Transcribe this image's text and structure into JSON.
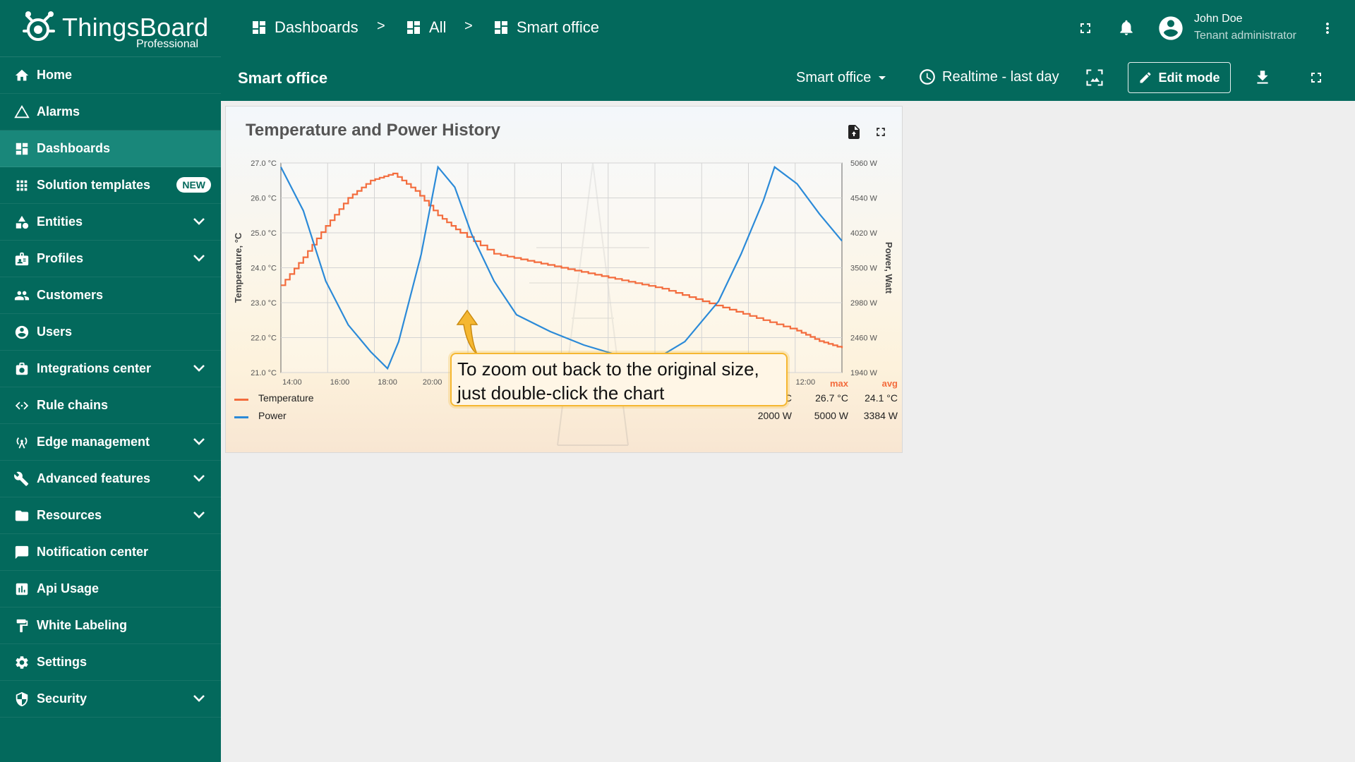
{
  "logo": {
    "name": "ThingsBoard",
    "subtitle": "Professional"
  },
  "sidebar": {
    "items": [
      {
        "label": "Home",
        "icon": "home-icon",
        "expandable": false
      },
      {
        "label": "Alarms",
        "icon": "alarm-triangle-icon",
        "expandable": false
      },
      {
        "label": "Dashboards",
        "icon": "dashboard-icon",
        "expandable": false,
        "active": true
      },
      {
        "label": "Solution templates",
        "icon": "apps-grid-icon",
        "expandable": false,
        "badge": "NEW"
      },
      {
        "label": "Entities",
        "icon": "shapes-icon",
        "expandable": true
      },
      {
        "label": "Profiles",
        "icon": "badge-icon",
        "expandable": true
      },
      {
        "label": "Customers",
        "icon": "people-icon",
        "expandable": false
      },
      {
        "label": "Users",
        "icon": "account-circle-icon",
        "expandable": false
      },
      {
        "label": "Integrations center",
        "icon": "integration-icon",
        "expandable": true
      },
      {
        "label": "Rule chains",
        "icon": "code-arrows-icon",
        "expandable": false
      },
      {
        "label": "Edge management",
        "icon": "wifi-tower-icon",
        "expandable": true
      },
      {
        "label": "Advanced features",
        "icon": "tools-icon",
        "expandable": true
      },
      {
        "label": "Resources",
        "icon": "folder-icon",
        "expandable": true
      },
      {
        "label": "Notification center",
        "icon": "notification-flag-icon",
        "expandable": false
      },
      {
        "label": "Api Usage",
        "icon": "bar-chart-icon",
        "expandable": false
      },
      {
        "label": "White Labeling",
        "icon": "paint-roller-icon",
        "expandable": false
      },
      {
        "label": "Settings",
        "icon": "gear-icon",
        "expandable": false
      },
      {
        "label": "Security",
        "icon": "shield-icon",
        "expandable": true
      }
    ]
  },
  "breadcrumb": {
    "items": [
      "Dashboards",
      "All",
      "Smart office"
    ],
    "separator": ">"
  },
  "user": {
    "name": "John Doe",
    "role": "Tenant administrator"
  },
  "toolbar": {
    "dashboard_title": "Smart office",
    "state_selector": "Smart office",
    "time_window": "Realtime - last day",
    "edit_mode_label": "Edit mode"
  },
  "widget": {
    "title": "Temperature and Power History"
  },
  "chart_data": {
    "type": "line",
    "title": "Temperature and Power History",
    "x_ticks": [
      "14:00",
      "16:00",
      "18:00",
      "20:00",
      "12:00"
    ],
    "y_left": {
      "label": "Temperature, °C",
      "ticks": [
        "27.0 °C",
        "26.0 °C",
        "25.0 °C",
        "24.0 °C",
        "23.0 °C",
        "22.0 °C",
        "21.0 °C"
      ],
      "range": [
        21.0,
        27.0
      ]
    },
    "y_right": {
      "label": "Power, Watt",
      "ticks": [
        "5060 W",
        "4540 W",
        "4020 W",
        "3500 W",
        "2980 W",
        "2460 W",
        "1940 W"
      ],
      "range": [
        1940,
        5060
      ]
    },
    "series": [
      {
        "name": "Temperature",
        "color": "#f36c3d",
        "axis": "left",
        "points": [
          [
            0.0,
            23.5
          ],
          [
            0.04,
            24.3
          ],
          [
            0.08,
            25.2
          ],
          [
            0.12,
            26.0
          ],
          [
            0.16,
            26.5
          ],
          [
            0.2,
            26.7
          ],
          [
            0.24,
            26.2
          ],
          [
            0.28,
            25.5
          ],
          [
            0.32,
            25.0
          ],
          [
            0.38,
            24.4
          ],
          [
            0.44,
            24.2
          ],
          [
            0.5,
            24.0
          ],
          [
            0.56,
            23.8
          ],
          [
            0.62,
            23.6
          ],
          [
            0.68,
            23.4
          ],
          [
            0.74,
            23.1
          ],
          [
            0.8,
            22.8
          ],
          [
            0.86,
            22.5
          ],
          [
            0.92,
            22.2
          ],
          [
            0.96,
            21.9
          ],
          [
            1.0,
            21.7
          ]
        ]
      },
      {
        "name": "Power",
        "color": "#2b8ad8",
        "axis": "right",
        "points": [
          [
            0.0,
            5000
          ],
          [
            0.04,
            4350
          ],
          [
            0.08,
            3300
          ],
          [
            0.12,
            2650
          ],
          [
            0.16,
            2250
          ],
          [
            0.19,
            2000
          ],
          [
            0.21,
            2400
          ],
          [
            0.25,
            3700
          ],
          [
            0.28,
            5000
          ],
          [
            0.31,
            4700
          ],
          [
            0.34,
            4000
          ],
          [
            0.38,
            3300
          ],
          [
            0.42,
            2800
          ],
          [
            0.48,
            2550
          ],
          [
            0.54,
            2350
          ],
          [
            0.6,
            2200
          ],
          [
            0.66,
            2100
          ],
          [
            0.72,
            2400
          ],
          [
            0.78,
            3000
          ],
          [
            0.82,
            3700
          ],
          [
            0.86,
            4500
          ],
          [
            0.88,
            5000
          ],
          [
            0.92,
            4750
          ],
          [
            0.96,
            4300
          ],
          [
            1.0,
            3900
          ]
        ]
      }
    ]
  },
  "legend": {
    "headers": {
      "max": "max",
      "avg": "avg"
    },
    "rows": [
      {
        "name": "Temperature",
        "color": "#f36c3d",
        "min": "21.7 °C",
        "max": "26.7 °C",
        "avg": "24.1 °C"
      },
      {
        "name": "Power",
        "color": "#2b8ad8",
        "min": "2000 W",
        "max": "5000 W",
        "avg": "3384 W"
      }
    ]
  },
  "tooltip": {
    "line1": "To zoom out back to the original size,",
    "line2": "just double-click the chart"
  }
}
